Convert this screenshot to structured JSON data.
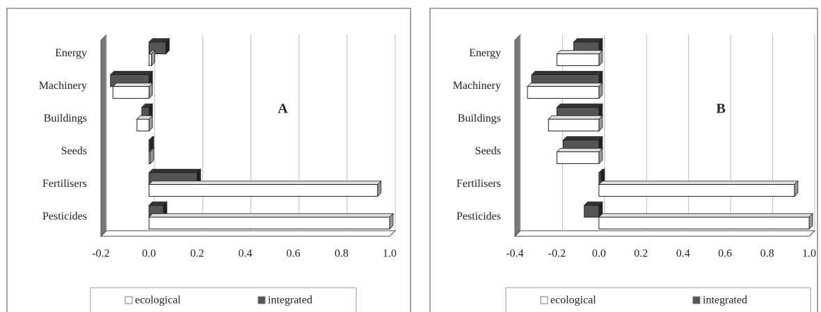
{
  "chart_data": [
    {
      "type": "bar",
      "orientation": "horizontal",
      "annotation": "A",
      "categories": [
        "Energy",
        "Machinery",
        "Buildings",
        "Seeds",
        "Fertilisers",
        "Pesticides"
      ],
      "series": [
        {
          "name": "ecological",
          "color": "#ffffff",
          "values": [
            0.01,
            -0.15,
            -0.05,
            0.005,
            0.95,
            1.0
          ]
        },
        {
          "name": "integrated",
          "color": "#555555",
          "values": [
            0.07,
            -0.16,
            -0.03,
            0.005,
            0.2,
            0.06
          ]
        }
      ],
      "xlim": [
        -0.2,
        1.0
      ],
      "xticks": [
        -0.2,
        {
          "value": 0,
          "label": "0.0"
        },
        0.2,
        0.4,
        0.6,
        0.8,
        {
          "value": 1,
          "label": "1.0"
        }
      ],
      "grid": true,
      "legend": "bottom"
    },
    {
      "type": "bar",
      "orientation": "horizontal",
      "annotation": "B",
      "categories": [
        "Energy",
        "Machinery",
        "Buildings",
        "Seeds",
        "Fertilisers",
        "Pesticides"
      ],
      "series": [
        {
          "name": "ecological",
          "color": "#ffffff",
          "values": [
            -0.2,
            -0.34,
            -0.24,
            -0.2,
            0.93,
            1.0
          ]
        },
        {
          "name": "integrated",
          "color": "#555555",
          "values": [
            -0.12,
            -0.32,
            -0.2,
            -0.17,
            0.01,
            -0.07
          ]
        }
      ],
      "xlim": [
        -0.4,
        1.0
      ],
      "xticks": [
        -0.4,
        -0.2,
        {
          "value": 0,
          "label": "0.0"
        },
        0.2,
        0.4,
        0.6,
        0.8,
        {
          "value": 1,
          "label": "1.0"
        }
      ],
      "grid": true,
      "legend": "bottom"
    }
  ]
}
